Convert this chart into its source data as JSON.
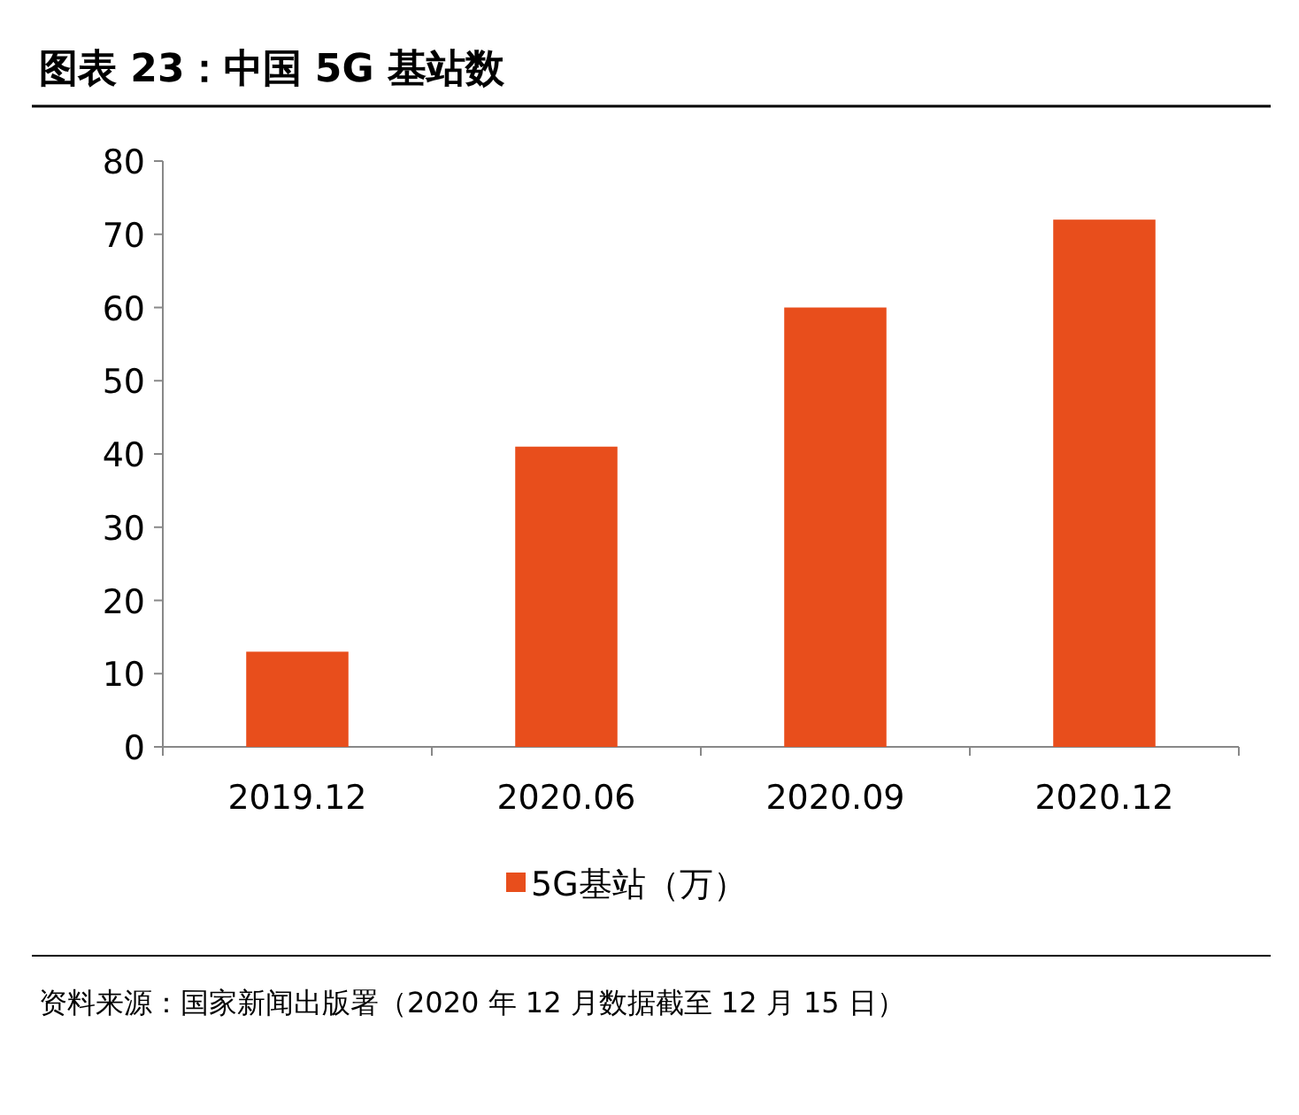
{
  "chart_data": {
    "type": "bar",
    "title": "图表 23：中国 5G 基站数",
    "categories": [
      "2019.12",
      "2020.06",
      "2020.09",
      "2020.12"
    ],
    "series": [
      {
        "name": "5G基站（万）",
        "color": "#e84e1c",
        "values": [
          13,
          41,
          60,
          72
        ]
      }
    ],
    "ylim": [
      0,
      80
    ],
    "yticks": [
      0,
      10,
      20,
      30,
      40,
      50,
      60,
      70,
      80
    ],
    "grid": false,
    "legend": "bottom",
    "annotations": [
      "资料来源：国家新闻出版署（2020 年 12 月数据截至 12 月 15 日）"
    ]
  }
}
